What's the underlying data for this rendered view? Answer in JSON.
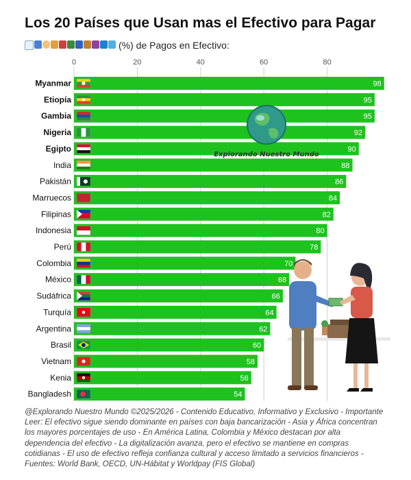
{
  "title": "Los 20 Países que Usan mas el Efectivo para Pagar",
  "subtitle": "(%) de Pagos en Efectivo:",
  "watermark": "Explorando Nuestro Mundo",
  "colors": {
    "bar": "#1ec21e",
    "grid": "#cfcfcf",
    "text": "#222222"
  },
  "chart_data": {
    "type": "bar",
    "orientation": "horizontal",
    "title": "Los 20 Países que Usan mas el Efectivo para Pagar",
    "xlabel": "(%) de Pagos en Efectivo:",
    "ylabel": "",
    "xlim": [
      0,
      100
    ],
    "xticks": [
      0,
      20,
      40,
      60,
      80
    ],
    "grid": true,
    "categories": [
      "Myanmar",
      "Etiopía",
      "Gambia",
      "Nigeria",
      "Egipto",
      "India",
      "Pakistán",
      "Marruecos",
      "Filipinas",
      "Indonesia",
      "Perú",
      "Colombia",
      "México",
      "Sudáfrica",
      "Turquía",
      "Argentina",
      "Brasil",
      "Vietnam",
      "Kenia",
      "Bangladesh"
    ],
    "bold": [
      true,
      true,
      true,
      true,
      true,
      false,
      false,
      false,
      false,
      false,
      false,
      false,
      false,
      false,
      false,
      false,
      false,
      false,
      false,
      false
    ],
    "flag_icons": [
      "myanmar-flag-icon",
      "ethiopia-flag-icon",
      "gambia-flag-icon",
      "nigeria-flag-icon",
      "egypt-flag-icon",
      "india-flag-icon",
      "pakistan-flag-icon",
      "morocco-flag-icon",
      "philippines-flag-icon",
      "indonesia-flag-icon",
      "peru-flag-icon",
      "colombia-flag-icon",
      "mexico-flag-icon",
      "south-africa-flag-icon",
      "turkey-flag-icon",
      "argentina-flag-icon",
      "brazil-flag-icon",
      "vietnam-flag-icon",
      "kenya-flag-icon",
      "bangladesh-flag-icon"
    ],
    "values": [
      98,
      95,
      95,
      92,
      90,
      88,
      86,
      84,
      82,
      80,
      78,
      70,
      68,
      66,
      64,
      62,
      60,
      58,
      56,
      54
    ]
  },
  "footer": {
    "credit": "@Explorando Nuestro Mundo ©2025/2026 - Contenido Educativo, Informativo y Exclusivo - Importante",
    "line2": "Leer: El efectivo sigue siendo dominante en países con baja bancarización - Asia y África concentran",
    "line3": "los mayores porcentajes de uso - En América Latina, Colombia y México destacan por alta",
    "line4": "dependencia del efectivo - La digitalización avanza, pero el efectivo se mantiene en compras",
    "line5": "cotidianas - El uso de efectivo refleja confianza cultural y acceso limitado a servicios financieros -",
    "line6": "Fuentes: World Bank, OECD, UN-Hábitat y Worldpay (FIS Global)"
  }
}
